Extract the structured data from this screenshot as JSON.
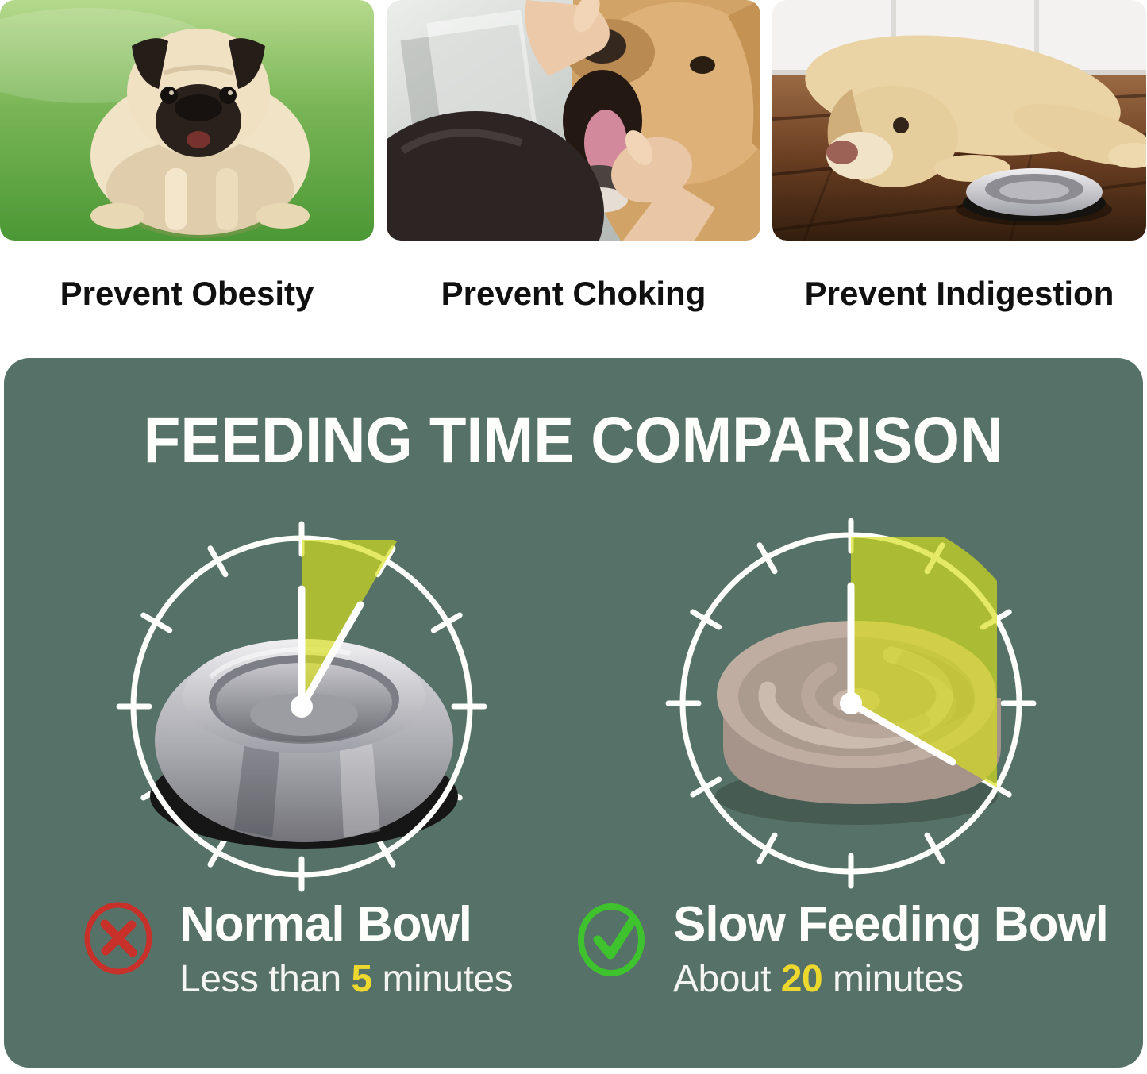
{
  "benefits": [
    {
      "caption": "Prevent Obesity",
      "image": "overweight-pug-standing-on-grass"
    },
    {
      "caption": "Prevent Choking",
      "image": "owner-checking-golden-retriever-mouth"
    },
    {
      "caption": "Prevent Indigestion",
      "image": "labrador-lying-beside-steel-bowl"
    }
  ],
  "comparison": {
    "title": "FEEDING TIME COMPARISON",
    "clock_total_minutes": 60,
    "clock_tick_count": 12,
    "items": [
      {
        "name": "Normal Bowl",
        "time_prefix": "Less than ",
        "time_value": "5",
        "time_suffix": " minutes",
        "minutes": 5,
        "verdict": "negative",
        "icon": "x-circle",
        "bowl": "stainless-steel-bowl"
      },
      {
        "name": "Slow Feeding Bowl",
        "time_prefix": "About ",
        "time_value": "20",
        "time_suffix": " minutes",
        "minutes": 20,
        "verdict": "positive",
        "icon": "check-circle",
        "bowl": "slow-feeder-maze-bowl"
      }
    ]
  },
  "colors": {
    "panel_background": "#567268",
    "title_text": "#ffffff",
    "caption_text": "#101010",
    "wedge_yellow_green": "#d8e019",
    "highlight_yellow": "#edd92e",
    "negative_red": "#c8302a",
    "positive_green": "#3ec32e",
    "clock_lines": "#ffffff"
  }
}
